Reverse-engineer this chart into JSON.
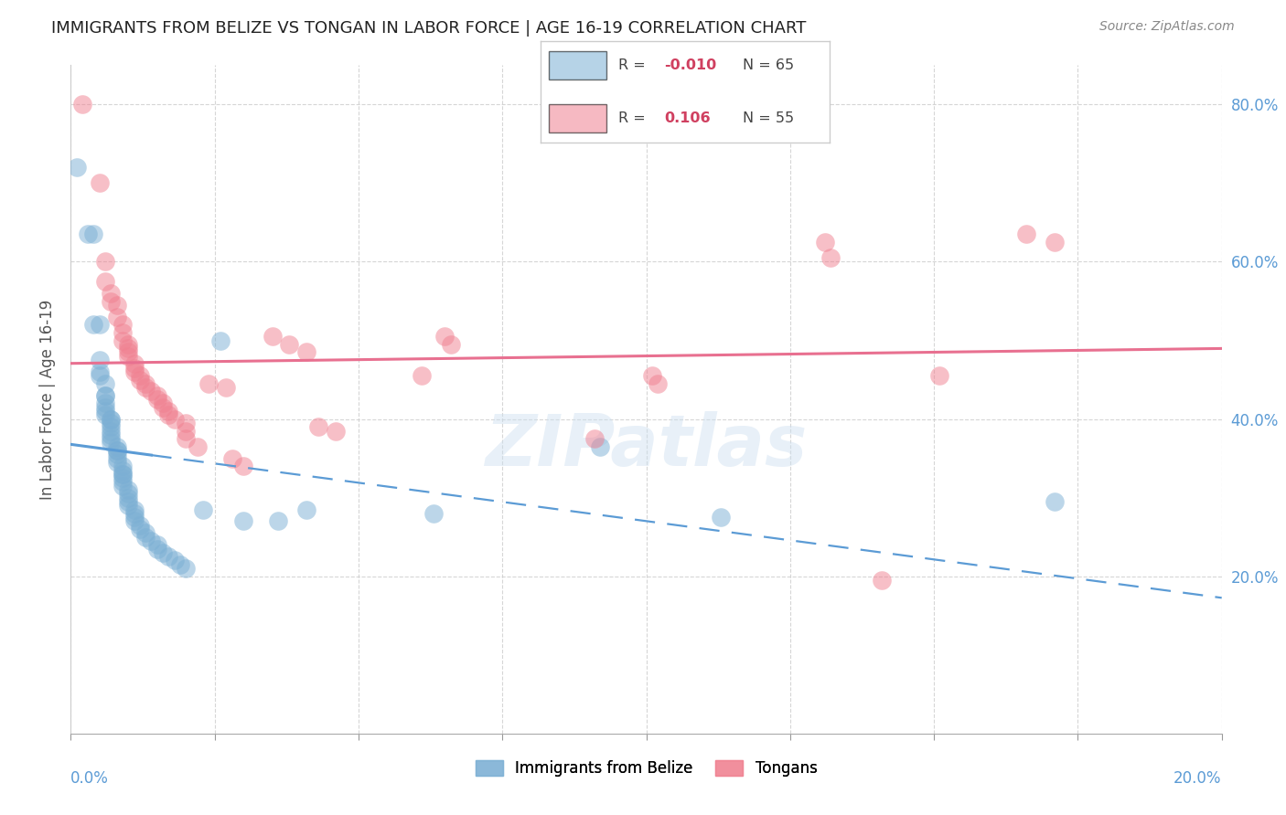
{
  "title": "IMMIGRANTS FROM BELIZE VS TONGAN IN LABOR FORCE | AGE 16-19 CORRELATION CHART",
  "source": "Source: ZipAtlas.com",
  "ylabel": "In Labor Force | Age 16-19",
  "xlim": [
    0.0,
    0.2
  ],
  "ylim": [
    0.0,
    0.85
  ],
  "yticks": [
    0.2,
    0.4,
    0.6,
    0.8
  ],
  "ytick_labels": [
    "20.0%",
    "40.0%",
    "60.0%",
    "80.0%"
  ],
  "xtick_vals": [
    0.0,
    0.025,
    0.05,
    0.075,
    0.1,
    0.125,
    0.15,
    0.175,
    0.2
  ],
  "belize_color": "#7bafd4",
  "tongan_color": "#f08090",
  "belize_line_color": "#5b9bd5",
  "tongan_line_color": "#e87090",
  "background_color": "#ffffff",
  "grid_color": "#cccccc",
  "right_yaxis_color": "#5b9bd5",
  "belize_points": [
    [
      0.001,
      0.72
    ],
    [
      0.003,
      0.635
    ],
    [
      0.004,
      0.635
    ],
    [
      0.004,
      0.52
    ],
    [
      0.005,
      0.52
    ],
    [
      0.005,
      0.475
    ],
    [
      0.005,
      0.46
    ],
    [
      0.005,
      0.455
    ],
    [
      0.006,
      0.445
    ],
    [
      0.006,
      0.43
    ],
    [
      0.006,
      0.43
    ],
    [
      0.006,
      0.42
    ],
    [
      0.006,
      0.415
    ],
    [
      0.006,
      0.41
    ],
    [
      0.006,
      0.405
    ],
    [
      0.007,
      0.4
    ],
    [
      0.007,
      0.4
    ],
    [
      0.007,
      0.395
    ],
    [
      0.007,
      0.39
    ],
    [
      0.007,
      0.385
    ],
    [
      0.007,
      0.38
    ],
    [
      0.007,
      0.375
    ],
    [
      0.007,
      0.37
    ],
    [
      0.008,
      0.365
    ],
    [
      0.008,
      0.36
    ],
    [
      0.008,
      0.36
    ],
    [
      0.008,
      0.355
    ],
    [
      0.008,
      0.35
    ],
    [
      0.008,
      0.345
    ],
    [
      0.009,
      0.34
    ],
    [
      0.009,
      0.335
    ],
    [
      0.009,
      0.33
    ],
    [
      0.009,
      0.33
    ],
    [
      0.009,
      0.325
    ],
    [
      0.009,
      0.32
    ],
    [
      0.009,
      0.315
    ],
    [
      0.01,
      0.31
    ],
    [
      0.01,
      0.305
    ],
    [
      0.01,
      0.3
    ],
    [
      0.01,
      0.295
    ],
    [
      0.01,
      0.29
    ],
    [
      0.011,
      0.285
    ],
    [
      0.011,
      0.28
    ],
    [
      0.011,
      0.275
    ],
    [
      0.011,
      0.27
    ],
    [
      0.012,
      0.265
    ],
    [
      0.012,
      0.26
    ],
    [
      0.013,
      0.255
    ],
    [
      0.013,
      0.25
    ],
    [
      0.014,
      0.245
    ],
    [
      0.015,
      0.24
    ],
    [
      0.015,
      0.235
    ],
    [
      0.016,
      0.23
    ],
    [
      0.017,
      0.225
    ],
    [
      0.018,
      0.22
    ],
    [
      0.019,
      0.215
    ],
    [
      0.02,
      0.21
    ],
    [
      0.023,
      0.285
    ],
    [
      0.026,
      0.5
    ],
    [
      0.03,
      0.27
    ],
    [
      0.036,
      0.27
    ],
    [
      0.041,
      0.285
    ],
    [
      0.063,
      0.28
    ],
    [
      0.092,
      0.365
    ],
    [
      0.113,
      0.275
    ],
    [
      0.171,
      0.295
    ]
  ],
  "tongan_points": [
    [
      0.002,
      0.8
    ],
    [
      0.005,
      0.7
    ],
    [
      0.006,
      0.6
    ],
    [
      0.006,
      0.575
    ],
    [
      0.007,
      0.56
    ],
    [
      0.007,
      0.55
    ],
    [
      0.008,
      0.545
    ],
    [
      0.008,
      0.53
    ],
    [
      0.009,
      0.52
    ],
    [
      0.009,
      0.51
    ],
    [
      0.009,
      0.5
    ],
    [
      0.01,
      0.495
    ],
    [
      0.01,
      0.49
    ],
    [
      0.01,
      0.485
    ],
    [
      0.01,
      0.48
    ],
    [
      0.011,
      0.47
    ],
    [
      0.011,
      0.465
    ],
    [
      0.011,
      0.46
    ],
    [
      0.012,
      0.455
    ],
    [
      0.012,
      0.45
    ],
    [
      0.013,
      0.445
    ],
    [
      0.013,
      0.44
    ],
    [
      0.014,
      0.435
    ],
    [
      0.015,
      0.43
    ],
    [
      0.015,
      0.425
    ],
    [
      0.016,
      0.42
    ],
    [
      0.016,
      0.415
    ],
    [
      0.017,
      0.41
    ],
    [
      0.017,
      0.405
    ],
    [
      0.018,
      0.4
    ],
    [
      0.02,
      0.395
    ],
    [
      0.02,
      0.385
    ],
    [
      0.02,
      0.375
    ],
    [
      0.022,
      0.365
    ],
    [
      0.024,
      0.445
    ],
    [
      0.027,
      0.44
    ],
    [
      0.028,
      0.35
    ],
    [
      0.03,
      0.34
    ],
    [
      0.035,
      0.505
    ],
    [
      0.038,
      0.495
    ],
    [
      0.041,
      0.485
    ],
    [
      0.043,
      0.39
    ],
    [
      0.046,
      0.385
    ],
    [
      0.061,
      0.455
    ],
    [
      0.065,
      0.505
    ],
    [
      0.066,
      0.495
    ],
    [
      0.091,
      0.375
    ],
    [
      0.101,
      0.455
    ],
    [
      0.102,
      0.445
    ],
    [
      0.131,
      0.625
    ],
    [
      0.132,
      0.605
    ],
    [
      0.141,
      0.195
    ],
    [
      0.151,
      0.455
    ],
    [
      0.166,
      0.635
    ],
    [
      0.171,
      0.625
    ]
  ]
}
